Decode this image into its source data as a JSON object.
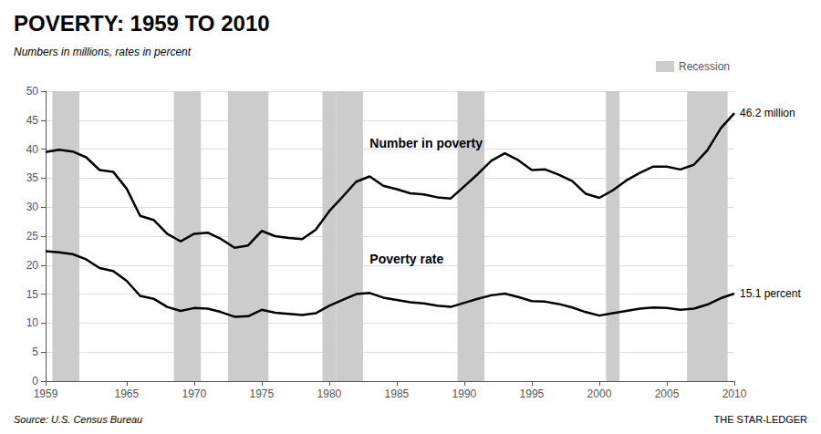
{
  "chart_data": {
    "type": "line",
    "title": "POVERTY: 1959 TO 2010",
    "subtitle": "Numbers in millions, rates in percent",
    "source": "Source: U.S. Census Bureau",
    "credit": "THE STAR-LEDGER",
    "x": [
      1959,
      1960,
      1961,
      1962,
      1963,
      1964,
      1965,
      1966,
      1967,
      1968,
      1969,
      1970,
      1971,
      1972,
      1973,
      1974,
      1975,
      1976,
      1977,
      1978,
      1979,
      1980,
      1981,
      1982,
      1983,
      1984,
      1985,
      1986,
      1987,
      1988,
      1989,
      1990,
      1991,
      1992,
      1993,
      1994,
      1995,
      1996,
      1997,
      1998,
      1999,
      2000,
      2001,
      2002,
      2003,
      2004,
      2005,
      2006,
      2007,
      2008,
      2009,
      2010
    ],
    "series": [
      {
        "color": "#000000",
        "values": [
          39.5,
          39.9,
          39.6,
          38.6,
          36.4,
          36.1,
          33.2,
          28.5,
          27.8,
          25.4,
          24.1,
          25.4,
          25.6,
          24.5,
          23.0,
          23.4,
          25.9,
          25.0,
          24.7,
          24.5,
          26.1,
          29.3,
          31.8,
          34.4,
          35.3,
          33.7,
          33.1,
          32.4,
          32.2,
          31.7,
          31.5,
          33.6,
          35.7,
          38.0,
          39.3,
          38.1,
          36.4,
          36.5,
          35.6,
          34.5,
          32.3,
          31.6,
          32.9,
          34.6,
          35.9,
          37.0,
          37.0,
          36.5,
          37.3,
          39.8,
          43.6,
          46.2
        ]
      },
      {
        "color": "#000000",
        "values": [
          22.4,
          22.2,
          21.9,
          21.0,
          19.5,
          19.0,
          17.3,
          14.7,
          14.2,
          12.8,
          12.1,
          12.6,
          12.5,
          11.9,
          11.1,
          11.2,
          12.3,
          11.8,
          11.6,
          11.4,
          11.7,
          13.0,
          14.0,
          15.0,
          15.2,
          14.4,
          14.0,
          13.6,
          13.4,
          13.0,
          12.8,
          13.5,
          14.2,
          14.8,
          15.1,
          14.5,
          13.8,
          13.7,
          13.3,
          12.7,
          11.9,
          11.3,
          11.7,
          12.1,
          12.5,
          12.7,
          12.6,
          12.3,
          12.5,
          13.2,
          14.3,
          15.1
        ]
      }
    ],
    "recessions": {
      "name": "Recession",
      "color": "#cccccc",
      "periods": [
        [
          1960,
          1961
        ],
        [
          1969,
          1970
        ],
        [
          1973,
          1975
        ],
        [
          1980,
          1980
        ],
        [
          1981,
          1982
        ],
        [
          1990,
          1991
        ],
        [
          2001,
          2001
        ],
        [
          2007,
          2009
        ]
      ]
    },
    "annotations": [
      {
        "text": "Number in poverty",
        "x": 1983,
        "y": 39.5
      },
      {
        "text": "Poverty rate",
        "x": 1983,
        "y": 19.5
      },
      {
        "text": "46.2 million",
        "x": 2010,
        "y": 46.2
      },
      {
        "text": "15.1 percent",
        "x": 2010,
        "y": 15.1
      }
    ],
    "xlim": [
      1959,
      2010
    ],
    "xticks": [
      1959,
      1965,
      1970,
      1975,
      1980,
      1985,
      1990,
      1995,
      2000,
      2005,
      2010
    ],
    "ylim": [
      0,
      50
    ],
    "yticks": [
      0,
      5,
      10,
      15,
      20,
      25,
      30,
      35,
      40,
      45,
      50
    ],
    "grid": true,
    "legend": "upper right"
  }
}
